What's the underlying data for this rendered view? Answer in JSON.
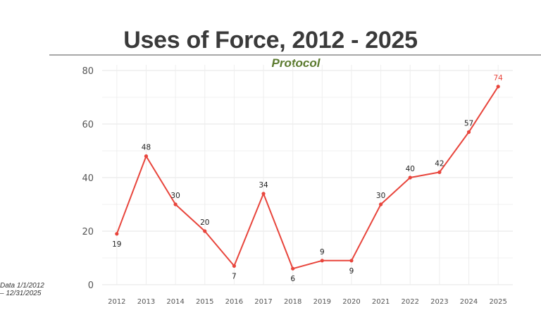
{
  "chart_data": {
    "type": "line",
    "title": "Uses of Force, 2012 - 2025",
    "subtitle": "Protocol",
    "xlabel": "",
    "ylabel": "",
    "x": [
      "2012",
      "2013",
      "2014",
      "2015",
      "2016",
      "2017",
      "2018",
      "2019",
      "2020",
      "2021",
      "2022",
      "2023",
      "2024",
      "2025"
    ],
    "series": [
      {
        "values": [
          19,
          48,
          30,
          20,
          7,
          34,
          6,
          9,
          9,
          30,
          40,
          42,
          57,
          74
        ]
      }
    ],
    "ylim": [
      0,
      80
    ],
    "yticks": [
      "0",
      "20",
      "40",
      "60",
      "80"
    ],
    "grid": true,
    "legend": "none",
    "colors": {
      "line": "#e8453c",
      "label": "#222222",
      "last_label": "#e8453c"
    },
    "footnote": "Data 1/1/2012 – 12/31/2025"
  }
}
